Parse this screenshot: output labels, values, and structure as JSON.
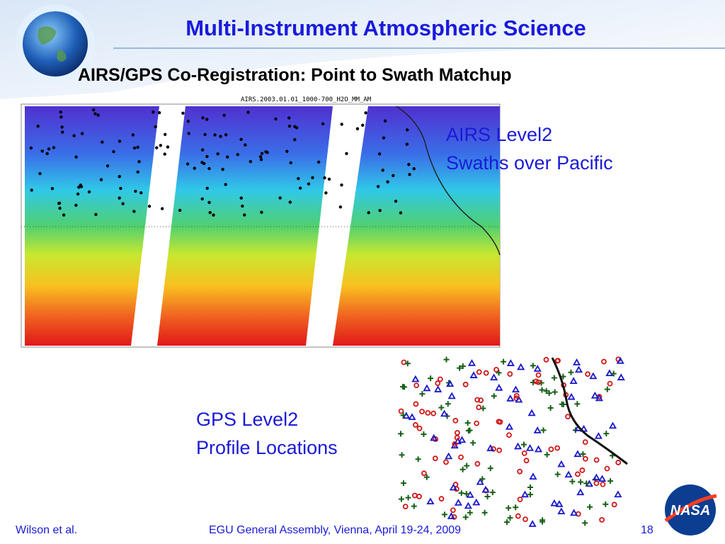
{
  "header": {
    "title": "Multi-Instrument Atmospheric Science",
    "subtitle": "AIRS/GPS Co-Registration:  Point to Swath Matchup"
  },
  "map": {
    "title": "AIRS.2003.01.01_1000-700_H2O_MM_AM"
  },
  "airs_caption": {
    "line1": "AIRS Level2",
    "line2": "Swaths over Pacific"
  },
  "gps_caption": {
    "line1": "GPS Level2",
    "line2": "Profile Locations"
  },
  "footer": {
    "author": "Wilson et al.",
    "event": "EGU General Assembly, Vienna, April 19-24, 2009",
    "page": "18"
  },
  "logo": {
    "text": "NASA"
  }
}
